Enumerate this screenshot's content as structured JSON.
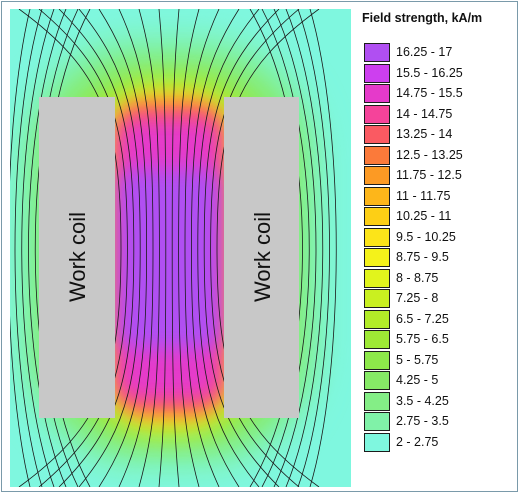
{
  "figure": {
    "coil_labels": [
      "Work coil",
      "Work coil"
    ],
    "background_color": "#7ff7df"
  },
  "legend": {
    "title": "Field strength, kA/m",
    "items": [
      {
        "label": "16.25 - 17",
        "color": "#b04ff2"
      },
      {
        "label": "15.5 - 16.25",
        "color": "#cd3fef"
      },
      {
        "label": "14.75 - 15.5",
        "color": "#e53aca"
      },
      {
        "label": "14 - 14.75",
        "color": "#f5439a"
      },
      {
        "label": "13.25 - 14",
        "color": "#fa5a62"
      },
      {
        "label": "12.5 - 13.25",
        "color": "#fb7a3a"
      },
      {
        "label": "11.75 - 12.5",
        "color": "#fc9a24"
      },
      {
        "label": "11 - 11.75",
        "color": "#fdb61a"
      },
      {
        "label": "10.25 - 11",
        "color": "#fdcf15"
      },
      {
        "label": "9.5 - 10.25",
        "color": "#fce419"
      },
      {
        "label": "8.75 - 9.5",
        "color": "#f4f21a"
      },
      {
        "label": "8 - 8.75",
        "color": "#e1f41c"
      },
      {
        "label": "7.25 - 8",
        "color": "#c9f020"
      },
      {
        "label": "6.5 - 7.25",
        "color": "#b2ec28"
      },
      {
        "label": "5.75 - 6.5",
        "color": "#9ee935"
      },
      {
        "label": "5 - 5.75",
        "color": "#8de84a"
      },
      {
        "label": "4.25 - 5",
        "color": "#86ea66"
      },
      {
        "label": "3.5 - 4.25",
        "color": "#84ee86"
      },
      {
        "label": "2.75 - 3.5",
        "color": "#80f2a8"
      },
      {
        "label": "2 - 2.75",
        "color": "#7ff7df"
      }
    ]
  }
}
